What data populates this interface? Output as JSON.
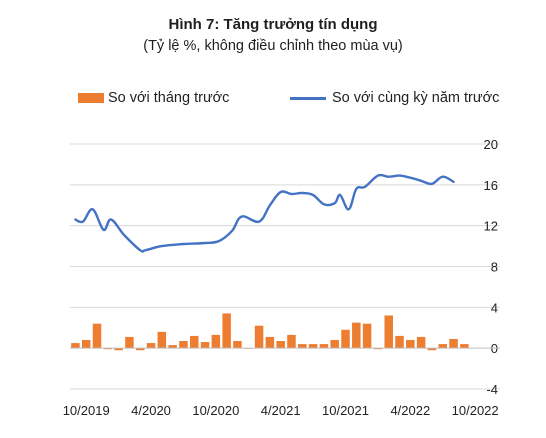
{
  "chart_data": {
    "type": "bar+line",
    "title": "Hình 7: Tăng trưởng tín dụng",
    "subtitle": "(Tỷ lệ %, không điều chỉnh theo mùa vụ)",
    "ylim": [
      -4,
      20
    ],
    "yticks": [
      "20",
      "16",
      "12",
      "8",
      "4",
      "0",
      "-4"
    ],
    "ytick_values": [
      20,
      16,
      12,
      8,
      4,
      0,
      -4
    ],
    "x_labels": [
      "10/2019",
      "4/2020",
      "10/2020",
      "4/2021",
      "10/2021",
      "4/2022",
      "10/2022"
    ],
    "x_label_months": [
      0,
      6,
      12,
      18,
      24,
      30,
      36
    ],
    "x_months": [
      -1,
      0,
      1,
      2,
      3,
      4,
      5,
      6,
      7,
      8,
      9,
      10,
      11,
      12,
      13,
      14,
      15,
      16,
      17,
      18,
      19,
      20,
      21,
      22,
      23,
      24,
      25,
      26,
      27,
      28,
      29,
      30,
      31,
      32,
      33,
      34,
      35,
      36,
      37
    ],
    "series": [
      {
        "name": "So với tháng trước",
        "kind": "bar",
        "color": "#ED7D31",
        "values": [
          0.5,
          0.8,
          2.4,
          -0.1,
          -0.2,
          1.1,
          -0.2,
          0.5,
          1.6,
          0.3,
          0.7,
          1.2,
          0.6,
          1.3,
          3.4,
          0.7,
          0.0,
          2.2,
          1.1,
          0.7,
          1.3,
          0.4,
          0.4,
          0.4,
          0.8,
          1.8,
          2.5,
          2.4,
          -0.1,
          3.2,
          1.2,
          0.8,
          1.1,
          -0.2,
          0.4,
          0.9,
          0.4
        ]
      },
      {
        "name": "So với cùng kỳ năm trước",
        "kind": "line",
        "color": "#4472C4",
        "values": [
          12.6,
          12.4,
          13.6,
          11.6,
          12.6,
          11.1,
          9.6,
          9.6,
          10.0,
          10.2,
          10.3,
          10.5,
          11.5,
          12.9,
          12.4,
          14.0,
          15.3,
          15.1,
          15.2,
          15.0,
          14.1,
          14.2,
          15.0,
          13.6,
          15.6,
          15.8,
          16.9,
          16.8,
          16.9,
          16.7,
          16.4,
          16.1,
          16.8,
          16.3
        ]
      }
    ],
    "line_x_months": [
      -1,
      -0.3,
      0.6,
      1.6,
      2.3,
      3.5,
      5.0,
      5.5,
      7.0,
      9.0,
      11.0,
      12.3,
      13.5,
      14.4,
      16.0,
      17.0,
      18.0,
      19.0,
      20.0,
      21.0,
      22.0,
      23.0,
      23.5,
      24.3,
      25.0,
      25.8,
      27.0,
      28.0,
      29.0,
      30.0,
      31.0,
      32.0,
      33.0,
      34.0
    ],
    "grid": "horizontal",
    "legend_position": "top"
  }
}
